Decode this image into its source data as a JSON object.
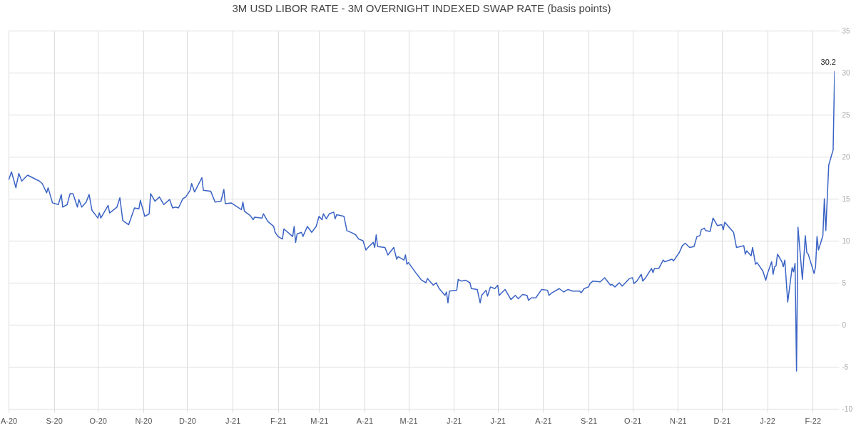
{
  "chart_data": {
    "type": "line",
    "title": "3M USD LIBOR RATE - 3M OVERNIGHT INDEXED SWAP RATE (basis points)",
    "x": [
      "2020-08-01",
      "2020-08-03",
      "2020-08-06",
      "2020-08-08",
      "2020-08-10",
      "2020-08-14",
      "2020-08-22",
      "2020-08-24",
      "2020-08-27",
      "2020-08-28",
      "2020-08-31",
      "2020-09-04",
      "2020-09-06",
      "2020-09-07",
      "2020-09-10",
      "2020-09-12",
      "2020-09-14",
      "2020-09-17",
      "2020-09-18",
      "2020-09-20",
      "2020-09-23",
      "2020-09-25",
      "2020-09-27",
      "2020-10-01",
      "2020-10-02",
      "2020-10-03",
      "2020-10-08",
      "2020-10-09",
      "2020-10-14",
      "2020-10-16",
      "2020-10-18",
      "2020-10-22",
      "2020-10-26",
      "2020-10-29",
      "2020-10-30",
      "2020-11-02",
      "2020-11-05",
      "2020-11-06",
      "2020-11-09",
      "2020-11-12",
      "2020-11-15",
      "2020-11-19",
      "2020-11-21",
      "2020-11-23",
      "2020-11-25",
      "2020-11-28",
      "2020-11-30",
      "2020-12-03",
      "2020-12-04",
      "2020-12-06",
      "2020-12-11",
      "2020-12-12",
      "2020-12-17",
      "2020-12-20",
      "2020-12-24",
      "2020-12-26",
      "2020-12-27",
      "2020-12-31",
      "2021-01-07",
      "2021-01-08",
      "2021-01-09",
      "2021-01-13",
      "2021-01-15",
      "2021-01-16",
      "2021-01-21",
      "2021-01-22",
      "2021-01-25",
      "2021-01-29",
      "2021-01-30",
      "2021-02-01",
      "2021-02-04",
      "2021-02-05",
      "2021-02-11",
      "2021-02-12",
      "2021-02-13",
      "2021-02-14",
      "2021-02-17",
      "2021-02-18",
      "2021-02-21",
      "2021-02-24",
      "2021-02-27",
      "2021-03-01",
      "2021-03-03",
      "2021-03-04",
      "2021-03-06",
      "2021-03-08",
      "2021-03-11",
      "2021-03-12",
      "2021-03-13",
      "2021-03-18",
      "2021-03-20",
      "2021-03-24",
      "2021-03-26",
      "2021-03-28",
      "2021-03-31",
      "2021-04-02",
      "2021-04-04",
      "2021-04-07",
      "2021-04-08",
      "2021-04-09",
      "2021-04-10",
      "2021-04-15",
      "2021-04-17",
      "2021-04-21",
      "2021-04-23",
      "2021-04-24",
      "2021-04-28",
      "2021-04-29",
      "2021-04-30",
      "2021-05-01",
      "2021-05-06",
      "2021-05-10",
      "2021-05-13",
      "2021-05-14",
      "2021-05-18",
      "2021-05-20",
      "2021-05-22",
      "2021-05-26",
      "2021-05-27",
      "2021-05-28",
      "2021-05-29",
      "2021-06-03",
      "2021-06-04",
      "2021-06-06",
      "2021-06-09",
      "2021-06-12",
      "2021-06-13",
      "2021-06-17",
      "2021-06-19",
      "2021-06-20",
      "2021-06-23",
      "2021-06-24",
      "2021-06-26",
      "2021-06-29",
      "2021-07-01",
      "2021-07-02",
      "2021-07-06",
      "2021-07-10",
      "2021-07-13",
      "2021-07-15",
      "2021-07-18",
      "2021-07-21",
      "2021-07-22",
      "2021-07-24",
      "2021-07-27",
      "2021-07-31",
      "2021-08-04",
      "2021-08-05",
      "2021-08-07",
      "2021-08-12",
      "2021-08-15",
      "2021-08-18",
      "2021-08-21",
      "2021-08-26",
      "2021-08-27",
      "2021-08-29",
      "2021-09-01",
      "2021-09-02",
      "2021-09-04",
      "2021-09-09",
      "2021-09-12",
      "2021-09-16",
      "2021-09-17",
      "2021-09-19",
      "2021-09-22",
      "2021-09-24",
      "2021-09-29",
      "2021-10-01",
      "2021-10-02",
      "2021-10-04",
      "2021-10-07",
      "2021-10-08",
      "2021-10-10",
      "2021-10-14",
      "2021-10-15",
      "2021-10-16",
      "2021-10-19",
      "2021-10-22",
      "2021-10-23",
      "2021-10-28",
      "2021-10-29",
      "2021-11-02",
      "2021-11-04",
      "2021-11-06",
      "2021-11-09",
      "2021-11-12",
      "2021-11-14",
      "2021-11-16",
      "2021-11-17",
      "2021-11-19",
      "2021-11-20",
      "2021-11-23",
      "2021-11-25",
      "2021-11-28",
      "2021-12-01",
      "2021-12-02",
      "2021-12-03",
      "2021-12-09",
      "2021-12-11",
      "2021-12-16",
      "2021-12-17",
      "2021-12-18",
      "2021-12-21",
      "2021-12-22",
      "2021-12-24",
      "2021-12-25",
      "2021-12-29",
      "2021-12-31",
      "2022-01-01",
      "2022-01-04",
      "2022-01-05",
      "2022-01-06",
      "2022-01-07",
      "2022-01-08",
      "2022-01-11",
      "2022-01-12",
      "2022-01-13",
      "2022-01-15",
      "2022-01-18",
      "2022-01-19",
      "2022-01-20",
      "2022-01-21",
      "2022-01-22",
      "2022-01-25",
      "2022-01-27",
      "2022-01-28",
      "2022-01-29",
      "2022-02-02",
      "2022-02-03",
      "2022-02-04",
      "2022-02-05",
      "2022-02-08",
      "2022-02-09",
      "2022-02-10",
      "2022-02-12",
      "2022-02-15",
      "2022-02-16"
    ],
    "series": [
      {
        "color": "#3a63c4",
        "values": [
          17.2,
          18.2,
          16.3,
          18.0,
          17.1,
          17.8,
          17.1,
          16.8,
          15.7,
          16.3,
          14.5,
          14.3,
          15.5,
          14.0,
          14.3,
          15.6,
          15.6,
          14.0,
          14.9,
          14.0,
          14.6,
          15.5,
          13.6,
          12.7,
          13.3,
          12.7,
          14.2,
          13.3,
          14.0,
          15.1,
          12.4,
          11.9,
          13.9,
          13.8,
          14.8,
          12.9,
          13.2,
          15.6,
          14.7,
          15.2,
          14.3,
          14.9,
          13.9,
          14.0,
          13.9,
          15.0,
          15.2,
          16.0,
          16.8,
          15.8,
          17.5,
          16.0,
          15.9,
          14.6,
          14.7,
          16.1,
          14.4,
          14.5,
          13.7,
          14.6,
          13.5,
          13.0,
          12.5,
          12.8,
          12.7,
          13.2,
          12.3,
          11.7,
          11.0,
          10.5,
          10.2,
          11.4,
          10.5,
          11.7,
          9.8,
          10.8,
          11.0,
          10.5,
          11.7,
          11.0,
          11.7,
          12.9,
          12.5,
          13.2,
          12.6,
          13.2,
          13.4,
          12.6,
          13.1,
          12.9,
          11.2,
          10.9,
          10.7,
          10.2,
          10.0,
          8.9,
          9.3,
          9.8,
          9.2,
          10.7,
          9.3,
          9.2,
          8.3,
          9.2,
          7.8,
          8.1,
          7.7,
          8.3,
          7.2,
          7.4,
          6.2,
          5.3,
          5.0,
          5.5,
          4.7,
          5.0,
          4.3,
          3.5,
          3.9,
          2.6,
          4.0,
          4.1,
          5.4,
          5.2,
          5.3,
          5.0,
          4.3,
          4.2,
          2.6,
          3.5,
          4.1,
          3.4,
          4.5,
          4.3,
          4.7,
          3.5,
          4.2,
          3.0,
          3.5,
          3.1,
          3.6,
          3.5,
          2.9,
          3.2,
          3.2,
          4.2,
          4.1,
          3.5,
          3.8,
          4.3,
          3.9,
          4.2,
          4.0,
          4.0,
          3.8,
          4.3,
          4.5,
          4.9,
          5.2,
          5.1,
          5.6,
          4.7,
          4.8,
          4.5,
          5.0,
          4.6,
          5.5,
          5.6,
          4.9,
          5.2,
          6.0,
          5.2,
          5.6,
          6.7,
          6.2,
          6.7,
          6.7,
          7.7,
          7.5,
          7.8,
          7.6,
          8.6,
          9.4,
          9.7,
          9.2,
          9.3,
          10.5,
          10.6,
          11.3,
          11.5,
          11.2,
          11.1,
          12.7,
          11.8,
          11.9,
          11.3,
          12.2,
          11.0,
          9.2,
          9.4,
          8.4,
          8.8,
          8.2,
          9.2,
          7.2,
          7.4,
          6.4,
          5.3,
          6.0,
          7.5,
          6.0,
          6.9,
          7.0,
          8.4,
          7.5,
          6.9,
          7.7,
          2.7,
          6.8,
          6.3,
          7.3,
          -5.5,
          11.6,
          5.4,
          10.6,
          8.6,
          8.4,
          6.1,
          6.9,
          10.5,
          8.9,
          10.6,
          15.0,
          11.2,
          19.0,
          20.8,
          30.2
        ]
      }
    ],
    "xlim": [
      "2020-08-01",
      "2022-02-16"
    ],
    "xticks": [
      {
        "value": "2020-08-01",
        "label": "A-20"
      },
      {
        "value": "2020-09-01",
        "label": "S-20"
      },
      {
        "value": "2020-10-01",
        "label": "O-20"
      },
      {
        "value": "2020-11-01",
        "label": "N-20"
      },
      {
        "value": "2020-12-01",
        "label": "D-20"
      },
      {
        "value": "2021-01-01",
        "label": "J-21"
      },
      {
        "value": "2021-02-01",
        "label": "F-21"
      },
      {
        "value": "2021-03-01",
        "label": "M-21"
      },
      {
        "value": "2021-04-01",
        "label": "A-21"
      },
      {
        "value": "2021-05-01",
        "label": "M-21"
      },
      {
        "value": "2021-06-01",
        "label": "J-21"
      },
      {
        "value": "2021-07-01",
        "label": "J-21"
      },
      {
        "value": "2021-08-01",
        "label": "A-21"
      },
      {
        "value": "2021-09-01",
        "label": "S-21"
      },
      {
        "value": "2021-10-01",
        "label": "O-21"
      },
      {
        "value": "2021-11-01",
        "label": "N-21"
      },
      {
        "value": "2021-12-01",
        "label": "D-21"
      },
      {
        "value": "2022-01-01",
        "label": "J-22"
      },
      {
        "value": "2022-02-01",
        "label": "F-22"
      }
    ],
    "ylim": [
      -10,
      35
    ],
    "yticks": [
      -10,
      -5,
      0,
      5,
      10,
      15,
      20,
      25,
      30,
      35
    ],
    "annotations": [
      {
        "text": "30.2",
        "x": "2022-02-16",
        "y": 30.2
      }
    ],
    "grid": true
  }
}
